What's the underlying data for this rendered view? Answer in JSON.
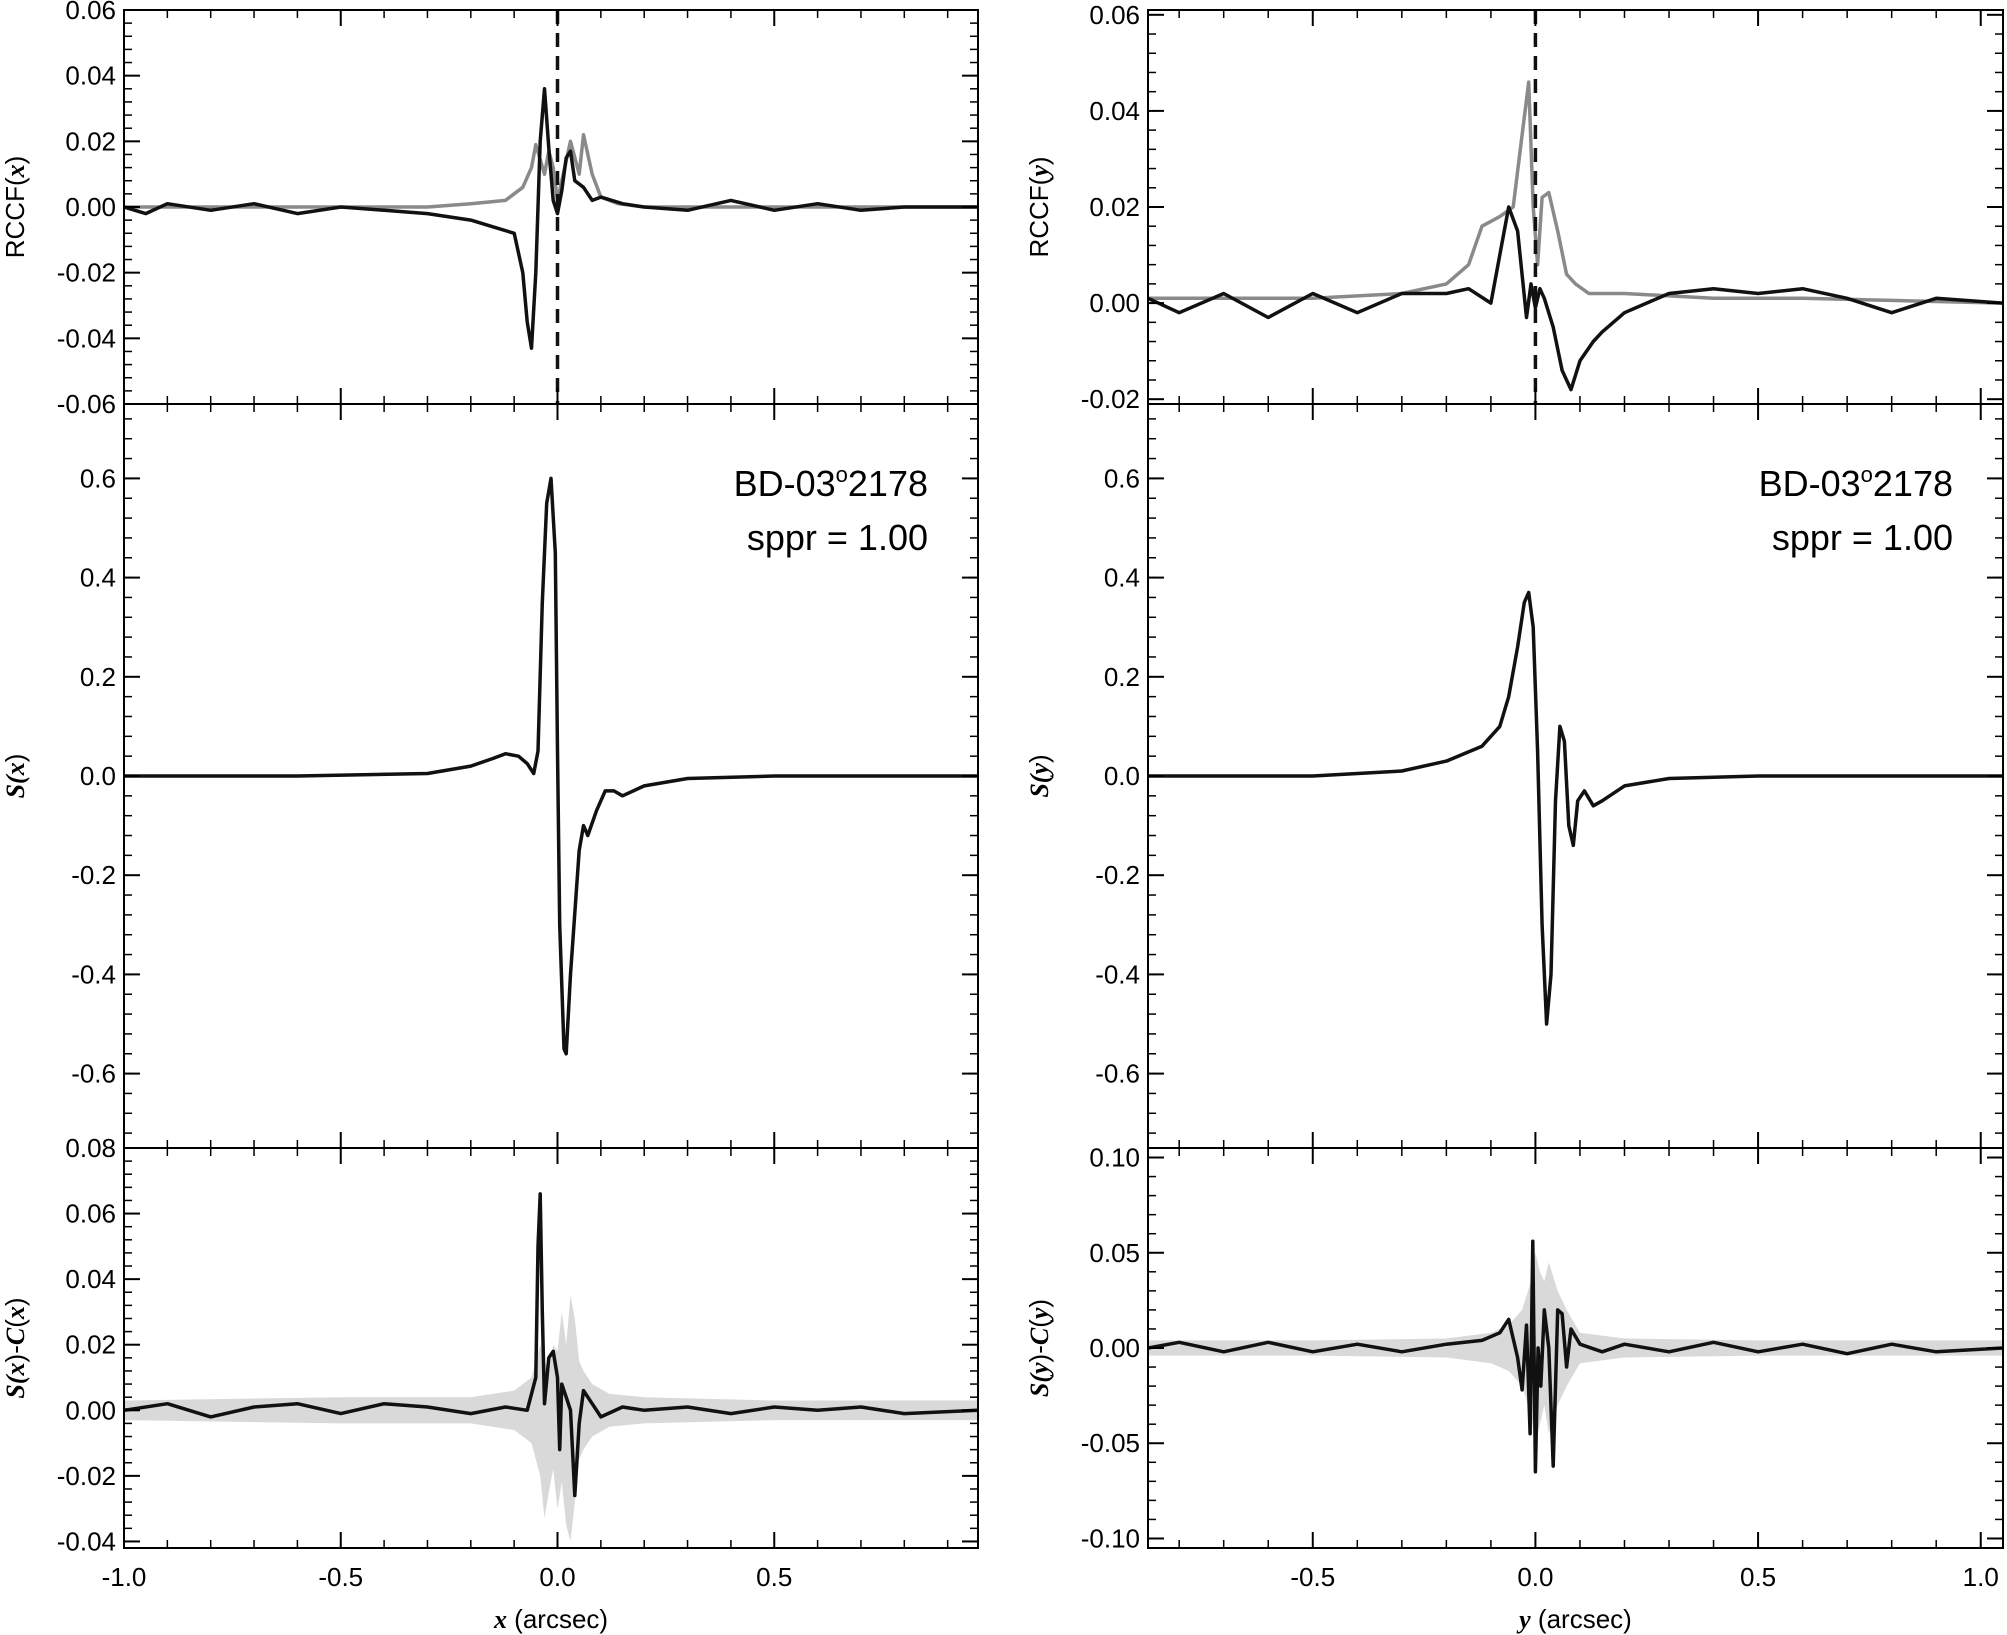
{
  "chart_data": [
    {
      "id": "left-top",
      "type": "line",
      "ylabel": "RCCF(x)",
      "ylabel_parts": [
        "RCCF(",
        "x",
        ")"
      ],
      "xlim": [
        -1.0,
        0.97
      ],
      "ylim": [
        -0.06,
        0.06
      ],
      "yticks": [
        -0.06,
        -0.04,
        -0.02,
        0.0,
        0.02,
        0.04,
        0.06
      ],
      "ytick_labels": [
        "-0.06",
        "-0.04",
        "-0.02",
        "0.00",
        "0.02",
        "0.04",
        "0.06"
      ],
      "vline_x": 0.0,
      "series": [
        {
          "color": "#8a8a8a",
          "x": [
            -1.0,
            -0.5,
            -0.3,
            -0.2,
            -0.12,
            -0.08,
            -0.06,
            -0.05,
            -0.03,
            -0.02,
            -0.01,
            0.0,
            0.01,
            0.03,
            0.05,
            0.06,
            0.08,
            0.1,
            0.14,
            0.2,
            0.3,
            0.5,
            0.97
          ],
          "y": [
            0.0,
            0.0,
            0.0,
            0.001,
            0.002,
            0.006,
            0.012,
            0.019,
            0.01,
            0.017,
            0.012,
            0.002,
            0.008,
            0.02,
            0.01,
            0.022,
            0.01,
            0.003,
            0.001,
            0.0,
            0.0,
            0.0,
            0.0
          ]
        },
        {
          "color": "#111111",
          "x": [
            -1.0,
            -0.95,
            -0.9,
            -0.8,
            -0.7,
            -0.6,
            -0.5,
            -0.4,
            -0.3,
            -0.2,
            -0.15,
            -0.1,
            -0.08,
            -0.07,
            -0.06,
            -0.05,
            -0.04,
            -0.03,
            -0.02,
            -0.01,
            0.0,
            0.01,
            0.02,
            0.03,
            0.04,
            0.06,
            0.08,
            0.1,
            0.15,
            0.2,
            0.3,
            0.4,
            0.5,
            0.6,
            0.7,
            0.8,
            0.97
          ],
          "y": [
            0.0,
            -0.002,
            0.001,
            -0.001,
            0.001,
            -0.002,
            0.0,
            -0.001,
            -0.002,
            -0.004,
            -0.006,
            -0.008,
            -0.02,
            -0.035,
            -0.043,
            -0.02,
            0.02,
            0.036,
            0.018,
            0.002,
            -0.002,
            0.005,
            0.015,
            0.017,
            0.008,
            0.006,
            0.002,
            0.003,
            0.001,
            0.0,
            -0.001,
            0.002,
            -0.001,
            0.001,
            -0.001,
            0.0,
            0.0
          ]
        }
      ]
    },
    {
      "id": "left-mid",
      "type": "line",
      "ylabel": "S(x)",
      "ylabel_parts": [
        "S(",
        "x",
        ")"
      ],
      "xlim": [
        -1.0,
        0.97
      ],
      "ylim": [
        -0.75,
        0.75
      ],
      "yticks": [
        -0.6,
        -0.4,
        -0.2,
        0.0,
        0.2,
        0.4,
        0.6
      ],
      "ytick_labels": [
        "-0.6",
        "-0.4",
        "-0.2",
        "0.0",
        "0.2",
        "0.4",
        "0.6"
      ],
      "annotation_name": "BD-03",
      "annotation_degree": "o",
      "annotation_num": "2178",
      "annotation_line2": "sppr = 1.00",
      "series": [
        {
          "color": "#111111",
          "x": [
            -1.0,
            -0.6,
            -0.3,
            -0.2,
            -0.15,
            -0.12,
            -0.09,
            -0.07,
            -0.055,
            -0.045,
            -0.035,
            -0.025,
            -0.015,
            -0.005,
            0.0,
            0.005,
            0.015,
            0.02,
            0.03,
            0.05,
            0.06,
            0.07,
            0.09,
            0.11,
            0.13,
            0.15,
            0.2,
            0.3,
            0.5,
            0.97
          ],
          "y": [
            0.0,
            0.0,
            0.005,
            0.02,
            0.035,
            0.045,
            0.04,
            0.025,
            0.005,
            0.05,
            0.35,
            0.55,
            0.6,
            0.45,
            0.05,
            -0.3,
            -0.55,
            -0.56,
            -0.4,
            -0.15,
            -0.1,
            -0.12,
            -0.07,
            -0.03,
            -0.03,
            -0.04,
            -0.02,
            -0.005,
            0.0,
            0.0
          ]
        }
      ]
    },
    {
      "id": "left-bot",
      "type": "line",
      "ylabel": "S(x)-C(x)",
      "ylabel_parts": [
        "S(",
        "x",
        ")-",
        "C",
        "(",
        "x",
        ")"
      ],
      "xlim": [
        -1.0,
        0.97
      ],
      "xlabel_var": "x",
      "xlabel_unit": " (arcsec)",
      "ylim": [
        -0.042,
        0.08
      ],
      "yticks": [
        -0.04,
        -0.02,
        0.0,
        0.02,
        0.04,
        0.06,
        0.08
      ],
      "ytick_labels": [
        "-0.04",
        "-0.02",
        "0.00",
        "0.02",
        "0.04",
        "0.06",
        "0.08"
      ],
      "xticks": [
        -1.0,
        -0.5,
        0.0,
        0.5
      ],
      "xtick_labels": [
        "-1.0",
        "-0.5",
        "0.0",
        "0.5"
      ],
      "band": {
        "color": "#d9d9d9",
        "x": [
          -1.0,
          -0.5,
          -0.2,
          -0.1,
          -0.06,
          -0.04,
          -0.03,
          -0.02,
          -0.01,
          0.0,
          0.01,
          0.02,
          0.03,
          0.04,
          0.05,
          0.06,
          0.08,
          0.12,
          0.2,
          0.5,
          0.97
        ],
        "upper": [
          0.003,
          0.004,
          0.004,
          0.006,
          0.01,
          0.02,
          0.015,
          0.012,
          0.02,
          0.018,
          0.03,
          0.02,
          0.035,
          0.028,
          0.015,
          0.012,
          0.008,
          0.005,
          0.004,
          0.003,
          0.003
        ],
        "lower": [
          -0.003,
          -0.004,
          -0.004,
          -0.006,
          -0.01,
          -0.02,
          -0.033,
          -0.025,
          -0.018,
          -0.03,
          -0.022,
          -0.035,
          -0.04,
          -0.028,
          -0.015,
          -0.012,
          -0.008,
          -0.005,
          -0.004,
          -0.003,
          -0.003
        ]
      },
      "series": [
        {
          "color": "#111111",
          "x": [
            -1.0,
            -0.9,
            -0.8,
            -0.7,
            -0.6,
            -0.5,
            -0.4,
            -0.3,
            -0.2,
            -0.12,
            -0.07,
            -0.05,
            -0.045,
            -0.04,
            -0.035,
            -0.03,
            -0.02,
            -0.01,
            0.0,
            0.005,
            0.01,
            0.02,
            0.03,
            0.04,
            0.05,
            0.06,
            0.08,
            0.1,
            0.15,
            0.2,
            0.3,
            0.4,
            0.5,
            0.6,
            0.7,
            0.8,
            0.97
          ],
          "y": [
            0.0,
            0.002,
            -0.002,
            0.001,
            0.002,
            -0.001,
            0.002,
            0.001,
            -0.001,
            0.001,
            0.0,
            0.01,
            0.05,
            0.066,
            0.03,
            0.002,
            0.016,
            0.018,
            0.01,
            -0.012,
            0.008,
            0.004,
            0.0,
            -0.026,
            -0.004,
            0.006,
            0.002,
            -0.002,
            0.001,
            0.0,
            0.001,
            -0.001,
            0.001,
            0.0,
            0.001,
            -0.001,
            0.0
          ]
        }
      ]
    },
    {
      "id": "right-top",
      "type": "line",
      "ylabel": "RCCF(y)",
      "ylabel_parts": [
        "RCCF(",
        "y",
        ")"
      ],
      "xlim": [
        -0.87,
        1.05
      ],
      "ylim": [
        -0.021,
        0.061
      ],
      "yticks": [
        -0.02,
        0.0,
        0.02,
        0.04,
        0.06
      ],
      "ytick_labels": [
        "-0.02",
        "0.00",
        "0.02",
        "0.04",
        "0.06"
      ],
      "vline_x": 0.0,
      "series": [
        {
          "color": "#8a8a8a",
          "x": [
            -0.87,
            -0.5,
            -0.3,
            -0.2,
            -0.15,
            -0.12,
            -0.08,
            -0.05,
            -0.03,
            -0.015,
            -0.005,
            0.005,
            0.015,
            0.03,
            0.05,
            0.07,
            0.09,
            0.12,
            0.2,
            0.4,
            0.6,
            1.05
          ],
          "y": [
            0.001,
            0.001,
            0.002,
            0.004,
            0.008,
            0.016,
            0.018,
            0.02,
            0.035,
            0.046,
            0.02,
            0.008,
            0.022,
            0.023,
            0.015,
            0.006,
            0.004,
            0.002,
            0.002,
            0.001,
            0.001,
            0.0
          ]
        },
        {
          "color": "#111111",
          "x": [
            -0.87,
            -0.8,
            -0.7,
            -0.6,
            -0.5,
            -0.4,
            -0.3,
            -0.2,
            -0.15,
            -0.1,
            -0.08,
            -0.06,
            -0.04,
            -0.02,
            -0.01,
            0.0,
            0.01,
            0.02,
            0.04,
            0.06,
            0.08,
            0.1,
            0.13,
            0.15,
            0.2,
            0.3,
            0.4,
            0.5,
            0.6,
            0.7,
            0.8,
            0.9,
            1.05
          ],
          "y": [
            0.001,
            -0.002,
            0.002,
            -0.003,
            0.002,
            -0.002,
            0.002,
            0.002,
            0.003,
            0.0,
            0.01,
            0.02,
            0.015,
            -0.003,
            0.004,
            -0.001,
            0.003,
            0.001,
            -0.005,
            -0.014,
            -0.018,
            -0.012,
            -0.008,
            -0.006,
            -0.002,
            0.002,
            0.003,
            0.002,
            0.003,
            0.001,
            -0.002,
            0.001,
            0.0
          ]
        }
      ]
    },
    {
      "id": "right-mid",
      "type": "line",
      "ylabel": "S(y)",
      "ylabel_parts": [
        "S(",
        "y",
        ")"
      ],
      "xlim": [
        -0.87,
        1.05
      ],
      "ylim": [
        -0.75,
        0.75
      ],
      "yticks": [
        -0.6,
        -0.4,
        -0.2,
        0.0,
        0.2,
        0.4,
        0.6
      ],
      "ytick_labels": [
        "-0.6",
        "-0.4",
        "-0.2",
        "0.0",
        "0.2",
        "0.4",
        "0.6"
      ],
      "annotation_name": "BD-03",
      "annotation_degree": "o",
      "annotation_num": "2178",
      "annotation_line2": "sppr = 1.00",
      "series": [
        {
          "color": "#111111",
          "x": [
            -0.87,
            -0.5,
            -0.3,
            -0.2,
            -0.12,
            -0.08,
            -0.06,
            -0.04,
            -0.025,
            -0.015,
            -0.005,
            0.005,
            0.015,
            0.025,
            0.035,
            0.045,
            0.055,
            0.065,
            0.075,
            0.085,
            0.095,
            0.11,
            0.13,
            0.15,
            0.2,
            0.3,
            0.5,
            1.05
          ],
          "y": [
            0.0,
            0.0,
            0.01,
            0.03,
            0.06,
            0.1,
            0.16,
            0.26,
            0.35,
            0.37,
            0.3,
            0.05,
            -0.3,
            -0.5,
            -0.4,
            -0.05,
            0.1,
            0.07,
            -0.1,
            -0.14,
            -0.05,
            -0.03,
            -0.06,
            -0.05,
            -0.02,
            -0.005,
            0.0,
            0.0
          ]
        }
      ]
    },
    {
      "id": "right-bot",
      "type": "line",
      "ylabel": "S(y)-C(y)",
      "ylabel_parts": [
        "S(",
        "y",
        ")-",
        "C",
        "(",
        "y",
        ")"
      ],
      "xlim": [
        -0.87,
        1.05
      ],
      "xlabel_var": "y",
      "xlabel_unit": " (arcsec)",
      "ylim": [
        -0.105,
        0.105
      ],
      "yticks": [
        -0.1,
        -0.05,
        0.0,
        0.05,
        0.1
      ],
      "ytick_labels": [
        "-0.10",
        "-0.05",
        "0.00",
        "0.05",
        "0.10"
      ],
      "xticks": [
        -0.5,
        0.0,
        0.5,
        1.0
      ],
      "xtick_labels": [
        "-0.5",
        "0.0",
        "0.5",
        "1.0"
      ],
      "band": {
        "color": "#d9d9d9",
        "x": [
          -0.87,
          -0.5,
          -0.2,
          -0.1,
          -0.06,
          -0.03,
          -0.01,
          0.0,
          0.01,
          0.02,
          0.03,
          0.05,
          0.07,
          0.1,
          0.2,
          0.5,
          1.05
        ],
        "upper": [
          0.004,
          0.004,
          0.005,
          0.008,
          0.012,
          0.02,
          0.035,
          0.05,
          0.04,
          0.035,
          0.045,
          0.03,
          0.02,
          0.008,
          0.005,
          0.004,
          0.004
        ],
        "lower": [
          -0.004,
          -0.004,
          -0.005,
          -0.008,
          -0.012,
          -0.02,
          -0.035,
          -0.05,
          -0.04,
          -0.03,
          -0.045,
          -0.03,
          -0.02,
          -0.008,
          -0.005,
          -0.004,
          -0.004
        ]
      },
      "series": [
        {
          "color": "#111111",
          "x": [
            -0.87,
            -0.8,
            -0.7,
            -0.6,
            -0.5,
            -0.4,
            -0.3,
            -0.2,
            -0.12,
            -0.08,
            -0.06,
            -0.04,
            -0.03,
            -0.02,
            -0.012,
            -0.006,
            0.0,
            0.006,
            0.012,
            0.02,
            0.03,
            0.04,
            0.05,
            0.06,
            0.07,
            0.08,
            0.1,
            0.15,
            0.2,
            0.3,
            0.4,
            0.5,
            0.6,
            0.7,
            0.8,
            0.9,
            1.05
          ],
          "y": [
            0.0,
            0.003,
            -0.002,
            0.003,
            -0.002,
            0.002,
            -0.002,
            0.002,
            0.004,
            0.008,
            0.015,
            -0.005,
            -0.022,
            0.012,
            -0.045,
            0.056,
            -0.065,
            0.0,
            -0.02,
            0.02,
            0.0,
            -0.062,
            0.02,
            0.018,
            -0.01,
            0.01,
            0.002,
            -0.002,
            0.002,
            -0.002,
            0.003,
            -0.002,
            0.002,
            -0.003,
            0.002,
            -0.002,
            0.0
          ]
        }
      ]
    }
  ]
}
